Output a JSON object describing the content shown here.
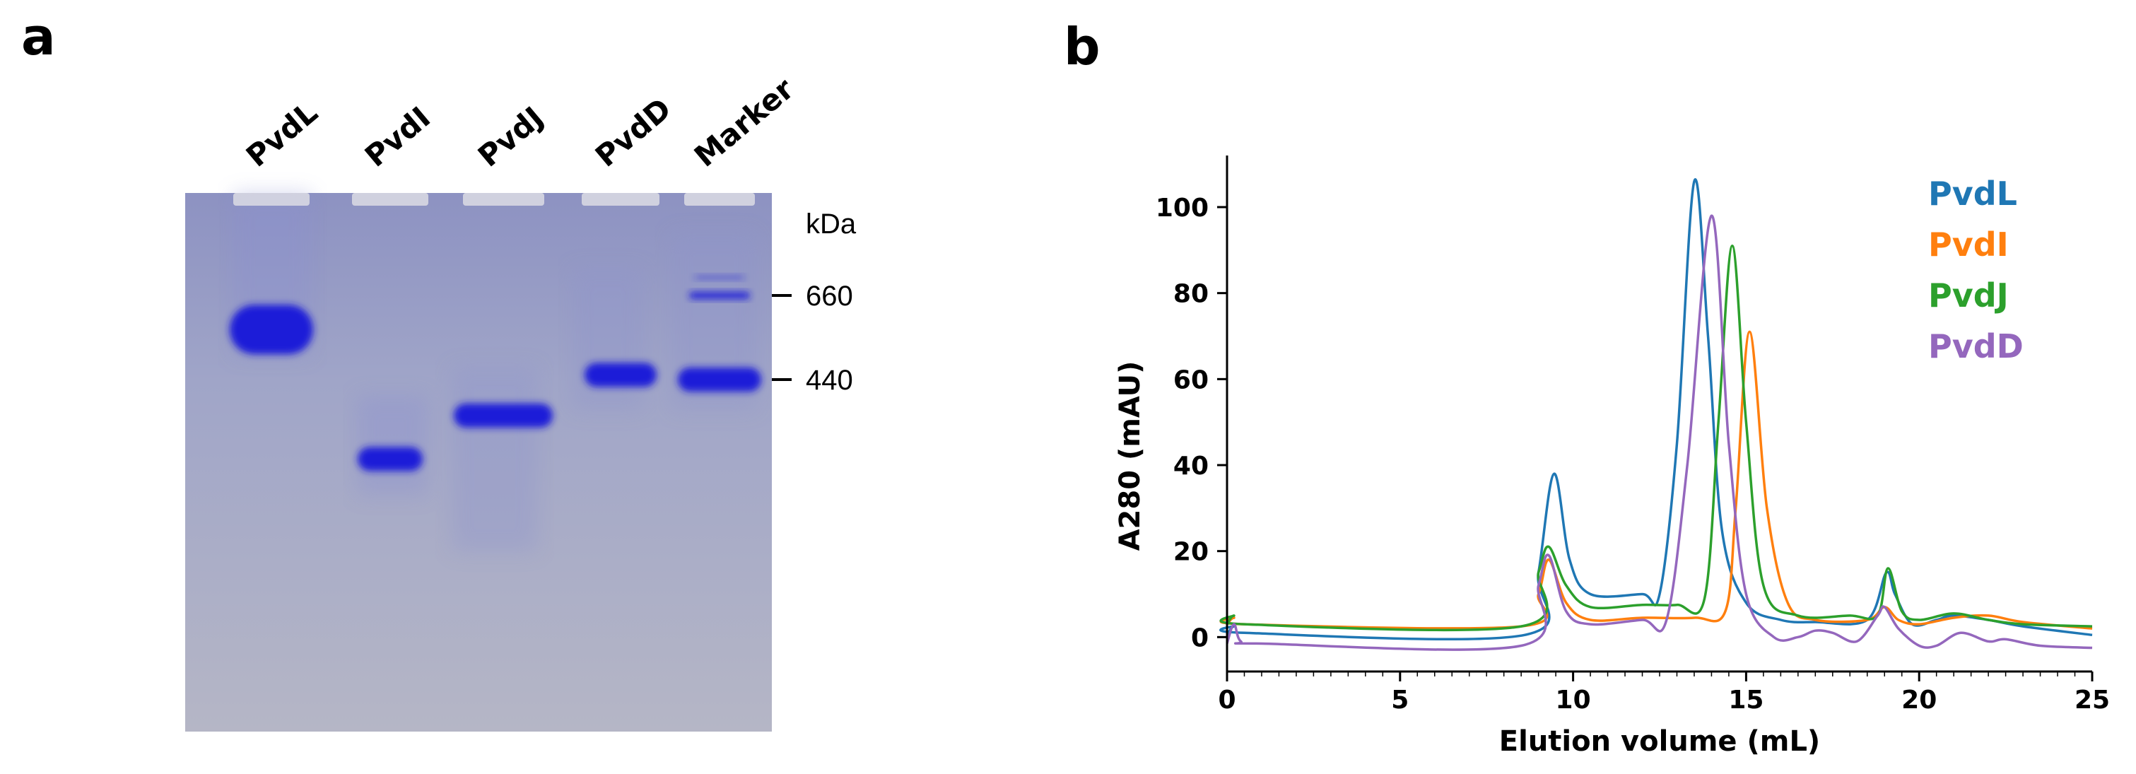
{
  "panel_labels": {
    "a": "a",
    "b": "b"
  },
  "gel": {
    "lanes": [
      {
        "label": "PvdL",
        "band_kda": [
          560
        ]
      },
      {
        "label": "PvdI",
        "band_kda": [
          300
        ]
      },
      {
        "label": "PvdJ",
        "band_kda": [
          370
        ]
      },
      {
        "label": "PvdD",
        "band_kda": [
          450
        ]
      },
      {
        "label": "Marker",
        "band_kda": [
          720,
          660,
          440
        ]
      }
    ],
    "unit_label": "kDa",
    "markers": [
      {
        "label": "660",
        "kda": 660
      },
      {
        "label": "440",
        "kda": 440
      }
    ],
    "colors": {
      "gel_background": "#9ea4c6",
      "band": "#1a1ad8"
    }
  },
  "chart_data": {
    "type": "line",
    "xlabel": "Elution volume (mL)",
    "ylabel": "A280 (mAU)",
    "xlim": [
      0,
      25
    ],
    "ylim": [
      -8,
      112
    ],
    "xticks": [
      0,
      5,
      10,
      15,
      20,
      25
    ],
    "yticks": [
      0,
      20,
      40,
      60,
      80,
      100
    ],
    "legend_position": "top-right",
    "series": [
      {
        "name": "PvdL",
        "color": "#1f77b4",
        "points": [
          [
            0,
            0.5
          ],
          [
            0.2,
            2.5
          ],
          [
            0.5,
            1
          ],
          [
            8.6,
            0.5
          ],
          [
            9.0,
            15
          ],
          [
            9.45,
            38
          ],
          [
            9.9,
            18
          ],
          [
            10.5,
            10
          ],
          [
            12.0,
            10
          ],
          [
            12.5,
            10
          ],
          [
            13.0,
            45
          ],
          [
            13.5,
            106
          ],
          [
            13.9,
            70
          ],
          [
            14.3,
            25
          ],
          [
            15.0,
            8
          ],
          [
            16.0,
            4
          ],
          [
            17.0,
            3.5
          ],
          [
            18.5,
            4
          ],
          [
            19.05,
            15
          ],
          [
            19.3,
            10
          ],
          [
            19.8,
            3
          ],
          [
            20.5,
            4
          ],
          [
            21.0,
            5
          ],
          [
            22.0,
            4
          ],
          [
            23.0,
            2.5
          ],
          [
            25,
            0.5
          ]
        ]
      },
      {
        "name": "PvdI",
        "color": "#ff7f0e",
        "points": [
          [
            0,
            3
          ],
          [
            0.2,
            4.5
          ],
          [
            0.5,
            3
          ],
          [
            8.5,
            2.5
          ],
          [
            9.0,
            10
          ],
          [
            9.3,
            18
          ],
          [
            9.8,
            8
          ],
          [
            10.5,
            4
          ],
          [
            12.0,
            4.5
          ],
          [
            13.5,
            4.5
          ],
          [
            14.4,
            6
          ],
          [
            14.7,
            30
          ],
          [
            15.1,
            71
          ],
          [
            15.6,
            30
          ],
          [
            16.2,
            8
          ],
          [
            17.0,
            4
          ],
          [
            18.5,
            4
          ],
          [
            19.0,
            7
          ],
          [
            19.4,
            4
          ],
          [
            20.0,
            3
          ],
          [
            21.0,
            4.5
          ],
          [
            22.0,
            5
          ],
          [
            23.0,
            3.5
          ],
          [
            25,
            2
          ]
        ]
      },
      {
        "name": "PvdJ",
        "color": "#2ca02c",
        "points": [
          [
            0,
            3
          ],
          [
            0.2,
            5
          ],
          [
            0.5,
            3
          ],
          [
            8.5,
            2.5
          ],
          [
            9.0,
            15
          ],
          [
            9.3,
            21
          ],
          [
            9.8,
            12
          ],
          [
            10.5,
            7
          ],
          [
            12.0,
            7.5
          ],
          [
            13.0,
            7.5
          ],
          [
            13.8,
            9
          ],
          [
            14.2,
            50
          ],
          [
            14.6,
            91
          ],
          [
            15.0,
            50
          ],
          [
            15.5,
            12
          ],
          [
            16.5,
            5
          ],
          [
            18.0,
            5
          ],
          [
            18.8,
            5
          ],
          [
            19.1,
            16
          ],
          [
            19.5,
            6
          ],
          [
            20.0,
            4
          ],
          [
            21.0,
            5.5
          ],
          [
            22.0,
            4
          ],
          [
            23.0,
            3
          ],
          [
            25,
            2.5
          ]
        ]
      },
      {
        "name": "PvdD",
        "color": "#9467bd",
        "points": [
          [
            0,
            -1.5
          ],
          [
            0.2,
            3
          ],
          [
            0.4,
            -1
          ],
          [
            1,
            -1.5
          ],
          [
            8.5,
            -2
          ],
          [
            9.0,
            12
          ],
          [
            9.3,
            19
          ],
          [
            9.8,
            6
          ],
          [
            10.5,
            3
          ],
          [
            12.0,
            4
          ],
          [
            12.7,
            4
          ],
          [
            13.3,
            40
          ],
          [
            14.0,
            98
          ],
          [
            14.5,
            45
          ],
          [
            15.0,
            10
          ],
          [
            15.8,
            0
          ],
          [
            16.5,
            0
          ],
          [
            17.0,
            1.5
          ],
          [
            17.5,
            1
          ],
          [
            18.2,
            -1
          ],
          [
            18.8,
            5
          ],
          [
            19.0,
            7
          ],
          [
            19.4,
            2
          ],
          [
            20.0,
            -2
          ],
          [
            20.5,
            -2
          ],
          [
            21.2,
            1
          ],
          [
            22.0,
            -1
          ],
          [
            22.5,
            -0.5
          ],
          [
            23.5,
            -2
          ],
          [
            25,
            -2.5
          ]
        ]
      }
    ]
  }
}
